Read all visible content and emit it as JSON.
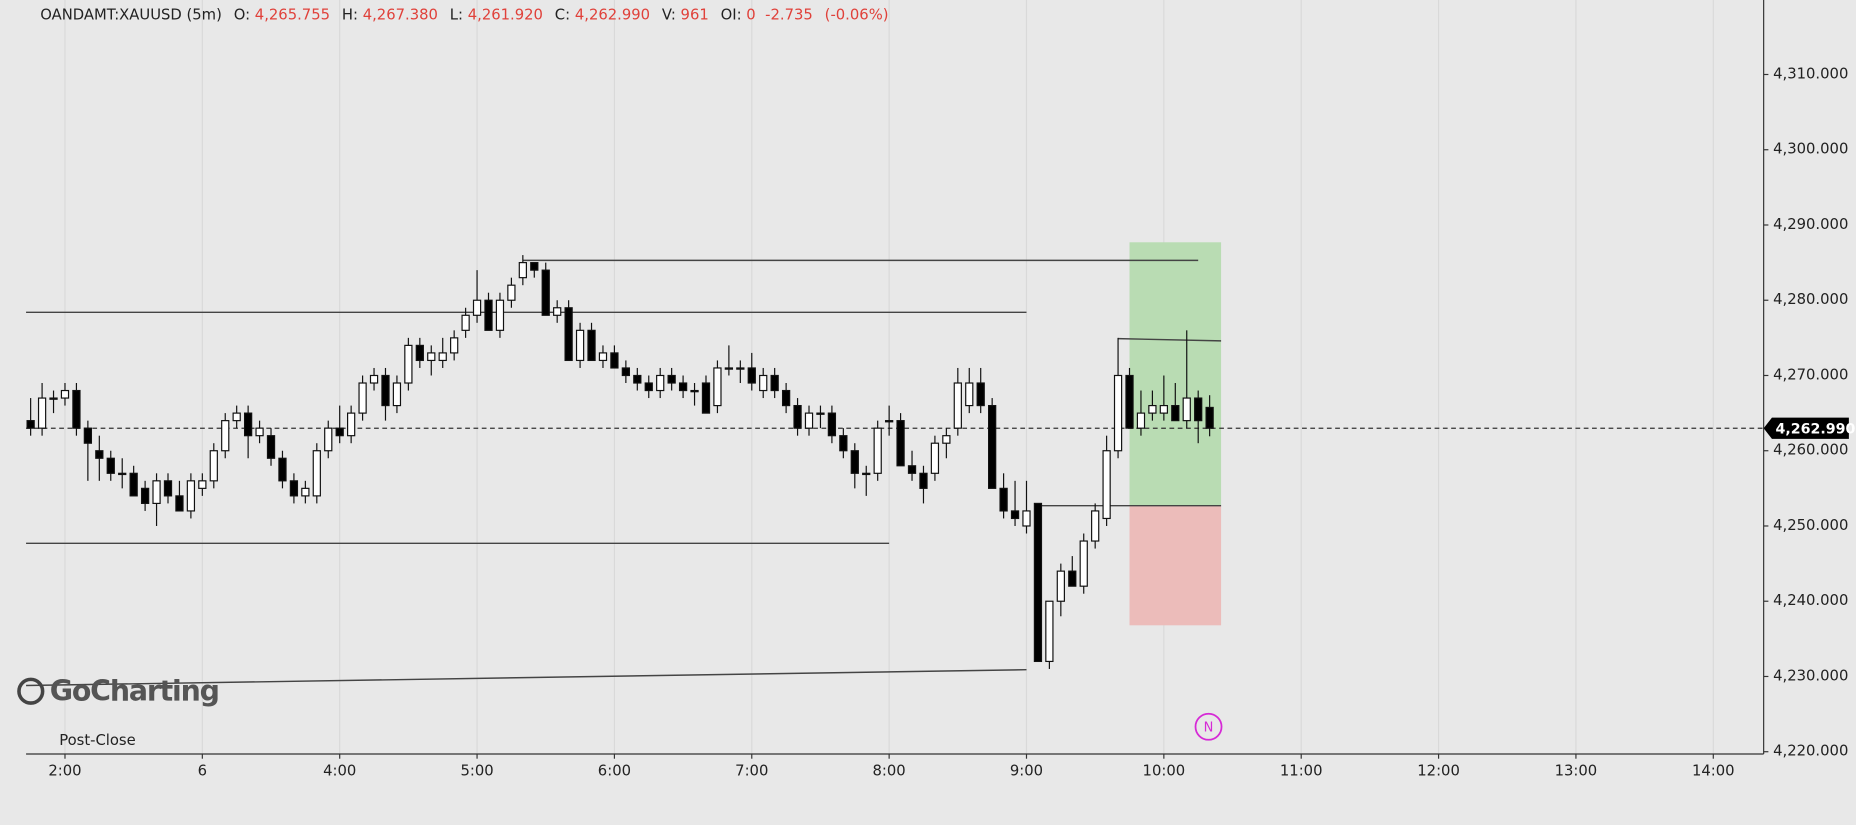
{
  "chart_data": {
    "type": "candlestick",
    "header": {
      "symbol": "OANDAMT:XAUUSD (5m)",
      "items": [
        {
          "key": "O:",
          "value": "4,265.755"
        },
        {
          "key": "H:",
          "value": "4,267.380"
        },
        {
          "key": "L:",
          "value": "4,261.920"
        },
        {
          "key": "C:",
          "value": "4,262.990"
        },
        {
          "key": "V:",
          "value": "961"
        },
        {
          "key": "OI:",
          "value": "0"
        }
      ],
      "change": "-2.735",
      "change_pct": "(-0.06%)"
    },
    "session_label": "Post-Close",
    "watermark": "GoCharting",
    "marker_label": "N",
    "up_color": "#ffffff",
    "down_color": "#000000",
    "grid": true,
    "xlim": [
      103,
      862
    ],
    "xticks": [
      {
        "value": 120,
        "label": "2:00"
      },
      {
        "value": 180,
        "label": "6"
      },
      {
        "value": 240,
        "label": "4:00"
      },
      {
        "value": 300,
        "label": "5:00"
      },
      {
        "value": 360,
        "label": "6:00"
      },
      {
        "value": 420,
        "label": "7:00"
      },
      {
        "value": 480,
        "label": "8:00"
      },
      {
        "value": 540,
        "label": "9:00"
      },
      {
        "value": 600,
        "label": "10:00"
      },
      {
        "value": 660,
        "label": "11:00"
      },
      {
        "value": 720,
        "label": "12:00"
      },
      {
        "value": 780,
        "label": "13:00"
      },
      {
        "value": 840,
        "label": "14:00"
      }
    ],
    "ylim": [
      4219.7,
      4319.9
    ],
    "yticks": [
      {
        "value": 4220,
        "label": "4,220.000"
      },
      {
        "value": 4230,
        "label": "4,230.000"
      },
      {
        "value": 4240,
        "label": "4,240.000"
      },
      {
        "value": 4250,
        "label": "4,250.000"
      },
      {
        "value": 4260,
        "label": "4,260.000"
      },
      {
        "value": 4270,
        "label": "4,270.000"
      },
      {
        "value": 4280,
        "label": "4,280.000"
      },
      {
        "value": 4290,
        "label": "4,290.000"
      },
      {
        "value": 4300,
        "label": "4,300.000"
      },
      {
        "value": 4310,
        "label": "4,310.000"
      }
    ],
    "last_price": {
      "value": 4262.99,
      "label": "4,262.990"
    },
    "x": [
      105,
      110,
      115,
      120,
      125,
      130,
      135,
      140,
      145,
      150,
      155,
      160,
      165,
      170,
      175,
      180,
      185,
      190,
      195,
      200,
      205,
      210,
      215,
      220,
      225,
      230,
      235,
      240,
      245,
      250,
      255,
      260,
      265,
      270,
      275,
      280,
      285,
      290,
      295,
      300,
      305,
      310,
      315,
      320,
      325,
      330,
      335,
      340,
      345,
      350,
      355,
      360,
      365,
      370,
      375,
      380,
      385,
      390,
      395,
      400,
      405,
      410,
      415,
      420,
      425,
      430,
      435,
      440,
      445,
      450,
      455,
      460,
      465,
      470,
      475,
      480,
      485,
      490,
      495,
      500,
      505,
      510,
      515,
      520,
      525,
      530,
      535,
      540,
      545,
      550,
      555,
      560,
      565,
      570,
      575,
      580,
      585,
      590,
      595,
      600,
      605,
      610,
      615,
      620
    ],
    "open": [
      4264,
      4263,
      4267,
      4267,
      4268,
      4263,
      4260,
      4259,
      4257,
      4257,
      4255,
      4253,
      4256,
      4254,
      4252,
      4255,
      4256,
      4260,
      4264,
      4265,
      4262,
      4262,
      4259,
      4256,
      4254,
      4254,
      4260,
      4263,
      4262,
      4265,
      4269,
      4270,
      4266,
      4269,
      4274,
      4272,
      4272,
      4273,
      4276,
      4278,
      4280,
      4276,
      4280,
      4283,
      4285,
      4284,
      4278,
      4279,
      4272,
      4276,
      4272,
      4273,
      4271,
      4270,
      4269,
      4268,
      4270,
      4269,
      4268,
      4269,
      4266,
      4271,
      4271,
      4271,
      4268,
      4270,
      4268,
      4266,
      4263,
      4265,
      4265,
      4262,
      4260,
      4257,
      4257,
      4264,
      4264,
      4258,
      4257,
      4257,
      4261,
      4263,
      4266,
      4269,
      4266,
      4255,
      4252,
      4250,
      4253,
      4232,
      4240,
      4244,
      4242,
      4248,
      4251,
      4260,
      4270,
      4263,
      4265,
      4265,
      4266,
      4264,
      4267,
      4265.755
    ],
    "high": [
      4267,
      4269,
      4268,
      4269,
      4269,
      4264,
      4262,
      4260,
      4259,
      4258,
      4256,
      4257,
      4257,
      4256,
      4257,
      4257,
      4261,
      4265,
      4266,
      4266,
      4264,
      4263,
      4260,
      4257,
      4256,
      4261,
      4264,
      4266,
      4266,
      4270,
      4271,
      4271,
      4270,
      4275,
      4275,
      4274,
      4275,
      4276,
      4279,
      4284,
      4281,
      4281,
      4283,
      4286,
      4285,
      4285,
      4280,
      4280,
      4277,
      4277,
      4274,
      4274,
      4272,
      4271,
      4270,
      4271,
      4271,
      4270,
      4269,
      4270,
      4272,
      4274,
      4272,
      4273,
      4271,
      4271,
      4269,
      4267,
      4266,
      4266,
      4266,
      4263,
      4261,
      4258,
      4264,
      4266,
      4265,
      4260,
      4258,
      4262,
      4263,
      4271,
      4271,
      4271,
      4267,
      4257,
      4256,
      4256,
      4253,
      4240,
      4245,
      4246,
      4249,
      4253,
      4262,
      4275,
      4271,
      4268,
      4268,
      4270,
      4269,
      4276,
      4268,
      4267.38
    ],
    "low": [
      4262,
      4262,
      4265,
      4266,
      4262,
      4256,
      4256,
      4256,
      4255,
      4254,
      4252,
      4250,
      4253,
      4252,
      4251,
      4254,
      4255,
      4259,
      4263,
      4259,
      4261,
      4258,
      4255,
      4253,
      4253,
      4253,
      4259,
      4261,
      4261,
      4264,
      4268,
      4264,
      4265,
      4268,
      4271,
      4270,
      4271,
      4272,
      4275,
      4277,
      4276,
      4275,
      4279,
      4282,
      4283,
      4278,
      4277,
      4272,
      4271,
      4272,
      4271,
      4271,
      4269,
      4268,
      4267,
      4267,
      4268,
      4267,
      4266,
      4265,
      4265,
      4270,
      4269,
      4268,
      4267,
      4267,
      4265,
      4262,
      4262,
      4263,
      4261,
      4259,
      4255,
      4254,
      4256,
      4262,
      4258,
      4256,
      4253,
      4256,
      4259,
      4262,
      4265,
      4265,
      4255,
      4251,
      4250,
      4249,
      4232,
      4231,
      4238,
      4242,
      4241,
      4247,
      4250,
      4259,
      4263,
      4262,
      4264,
      4264,
      4264,
      4263,
      4261,
      4261.92
    ],
    "close": [
      4263,
      4267,
      4267,
      4268,
      4263,
      4261,
      4259,
      4257,
      4257,
      4254,
      4253,
      4256,
      4254,
      4252,
      4256,
      4256,
      4260,
      4264,
      4265,
      4262,
      4263,
      4259,
      4256,
      4254,
      4255,
      4260,
      4263,
      4262,
      4265,
      4269,
      4270,
      4266,
      4269,
      4274,
      4272,
      4273,
      4273,
      4275,
      4278,
      4280,
      4276,
      4280,
      4282,
      4285,
      4284,
      4278,
      4279,
      4272,
      4276,
      4272,
      4273,
      4271,
      4270,
      4269,
      4268,
      4270,
      4269,
      4268,
      4268,
      4265,
      4271,
      4271,
      4271,
      4269,
      4270,
      4268,
      4266,
      4263,
      4265,
      4265,
      4262,
      4260,
      4257,
      4257,
      4263,
      4264,
      4258,
      4257,
      4255,
      4261,
      4262,
      4269,
      4269,
      4266,
      4255,
      4252,
      4251,
      4252,
      4232,
      4240,
      4244,
      4242,
      4248,
      4252,
      4260,
      4270,
      4263,
      4265,
      4266,
      4266,
      4264,
      4267,
      4264,
      4262.99
    ],
    "lines": [
      {
        "x": [
          103,
          540
        ],
        "y": [
          4278.4,
          4278.4
        ]
      },
      {
        "x": [
          320,
          615
        ],
        "y": [
          4285.3,
          4285.3
        ]
      },
      {
        "x": [
          103,
          480
        ],
        "y": [
          4247.7,
          4247.7
        ]
      },
      {
        "x": [
          103,
          540
        ],
        "y": [
          4228.8,
          4230.9
        ]
      },
      {
        "x": [
          580,
          625
        ],
        "y": [
          4274.9,
          4274.6
        ]
      },
      {
        "x": [
          545,
          625
        ],
        "y": [
          4252.7,
          4252.7
        ]
      }
    ],
    "position": {
      "x": [
        585,
        625
      ],
      "entry": 4252.7,
      "target": 4287.7,
      "stop": 4236.8,
      "target_color": "#b9dcb3",
      "stop_color": "#ecbcba"
    }
  }
}
